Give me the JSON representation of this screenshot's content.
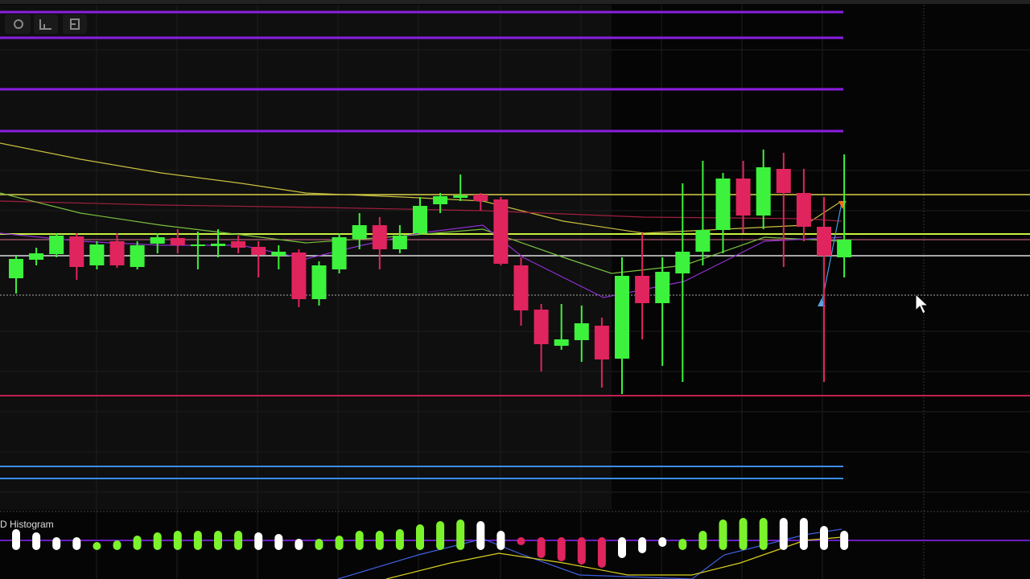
{
  "chart_data": {
    "type": "candlestick",
    "ylim": [
      0,
      635
    ],
    "up_color": "#3cf23c",
    "down_color": "#e0245e",
    "open": [
      289,
      312,
      319,
      341,
      305,
      335,
      303,
      332,
      339,
      329,
      329,
      335,
      328,
      317,
      321,
      263,
      300,
      338,
      355,
      325,
      345,
      381,
      389,
      393,
      387,
      305,
      250,
      205,
      212,
      230,
      189,
      292,
      258,
      295,
      322,
      349,
      413,
      367,
      425,
      395,
      353,
      315
    ],
    "high": [
      317,
      327,
      345,
      345,
      335,
      345,
      335,
      345,
      350,
      347,
      350,
      342,
      335,
      330,
      325,
      310,
      345,
      370,
      365,
      355,
      390,
      395,
      418,
      395,
      390,
      315,
      257,
      257,
      255,
      240,
      315,
      345,
      315,
      407,
      435,
      420,
      435,
      449,
      445,
      425,
      390,
      443
    ],
    "low": [
      270,
      305,
      315,
      287,
      300,
      302,
      300,
      320,
      320,
      300,
      315,
      320,
      290,
      300,
      253,
      255,
      295,
      325,
      300,
      320,
      343,
      370,
      385,
      373,
      305,
      230,
      173,
      200,
      185,
      153,
      145,
      213,
      180,
      160,
      305,
      320,
      345,
      350,
      303,
      335,
      160,
      290
    ],
    "close": [
      313,
      320,
      342,
      303,
      331,
      305,
      330,
      340,
      330,
      331,
      332,
      327,
      318,
      322,
      263,
      305,
      340,
      355,
      325,
      342,
      379,
      391,
      392,
      385,
      307,
      249,
      207,
      213,
      233,
      188,
      292,
      258,
      297,
      322,
      349,
      413,
      367,
      427,
      395,
      353,
      317,
      337
    ]
  },
  "indicator": {
    "type": "bar",
    "title": "D Histogram",
    "values": [
      26,
      22,
      16,
      16,
      10,
      12,
      18,
      22,
      24,
      24,
      24,
      24,
      22,
      20,
      14,
      14,
      18,
      24,
      24,
      26,
      32,
      36,
      38,
      36,
      24,
      -10,
      -26,
      -30,
      -34,
      -38,
      -26,
      -20,
      -12,
      14,
      24,
      38,
      40,
      40,
      40,
      40,
      30,
      24
    ],
    "colors": [
      "#ffffff",
      "#ffffff",
      "#ffffff",
      "#ffffff",
      "#7cf22c",
      "#7cf22c",
      "#7cf22c",
      "#7cf22c",
      "#7cf22c",
      "#7cf22c",
      "#7cf22c",
      "#7cf22c",
      "#ffffff",
      "#ffffff",
      "#ffffff",
      "#7cf22c",
      "#7cf22c",
      "#7cf22c",
      "#7cf22c",
      "#7cf22c",
      "#7cf22c",
      "#7cf22c",
      "#7cf22c",
      "#ffffff",
      "#ffffff",
      "#e0245e",
      "#e0245e",
      "#e0245e",
      "#e0245e",
      "#e0245e",
      "#ffffff",
      "#ffffff",
      "#ffffff",
      "#7cf22c",
      "#7cf22c",
      "#7cf22c",
      "#7cf22c",
      "#7cf22c",
      "#ffffff",
      "#ffffff",
      "#ffffff",
      "#ffffff"
    ]
  }
}
